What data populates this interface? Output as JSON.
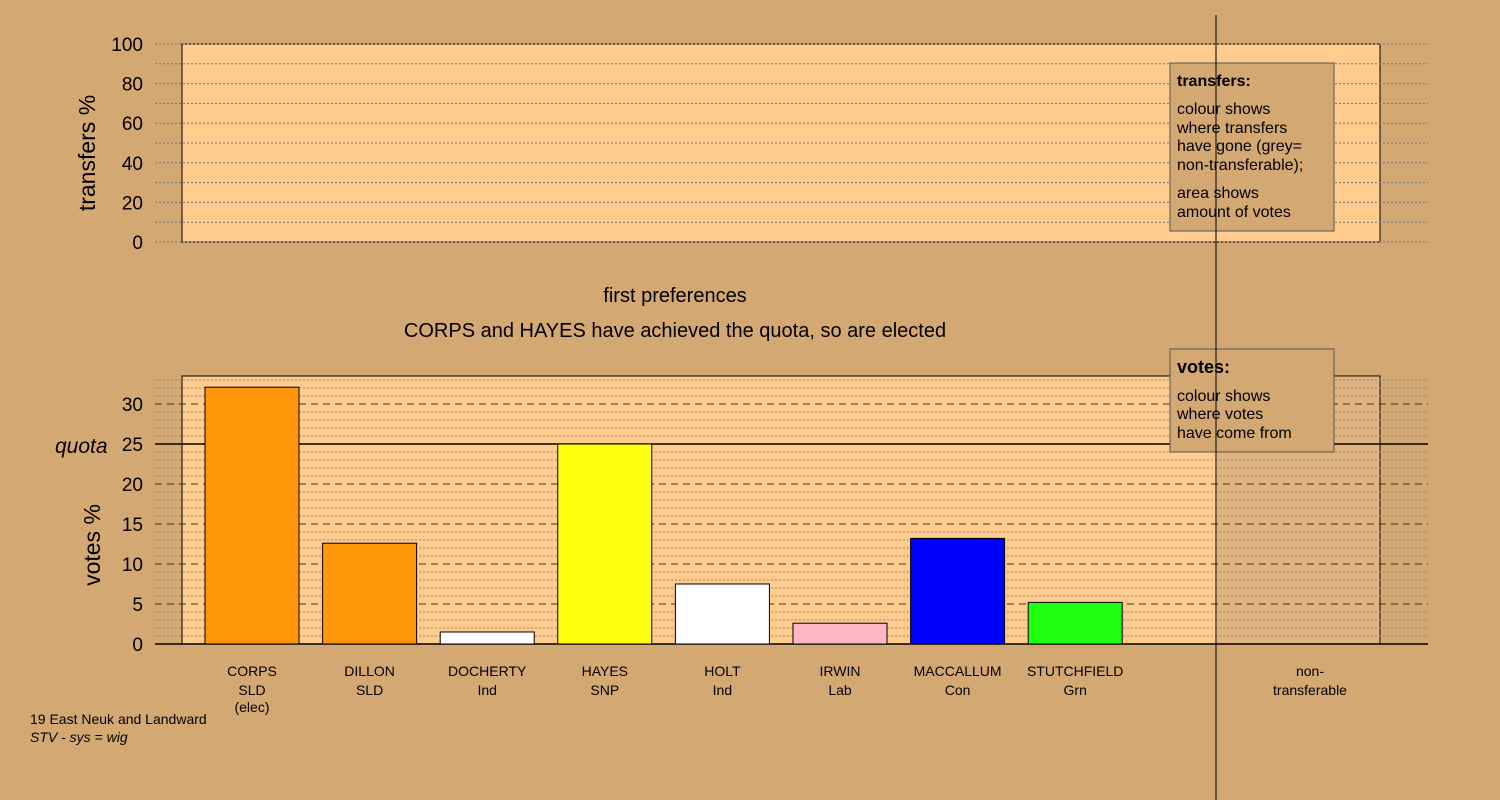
{
  "colors": {
    "background": "#d4a873",
    "panel": "#ffcc8e",
    "nt_panel": "#c8a072",
    "legend_box": "#d4a873"
  },
  "top_panel": {
    "ylabel": "transfers %",
    "ylim": [
      0,
      100
    ],
    "ticks": [
      0,
      20,
      40,
      60,
      80,
      100
    ]
  },
  "stage": {
    "title": "first preferences",
    "message": "CORPS and HAYES have achieved the quota, so are elected"
  },
  "legends": {
    "transfers": {
      "title": "transfers:",
      "lines": [
        "colour shows",
        "where transfers",
        "have gone (grey=",
        "non-transferable);"
      ],
      "lines2": [
        "area shows",
        "amount of votes"
      ]
    },
    "votes": {
      "title": "votes:",
      "lines": [
        "colour shows",
        "where votes",
        "have come from"
      ]
    }
  },
  "footer": {
    "line1": "19 East Neuk and Landward",
    "line2": "STV - sys = wig"
  },
  "chart_data": {
    "type": "bar",
    "ylabel": "votes %",
    "ylim": [
      0,
      33.5
    ],
    "yticks": [
      0,
      5,
      10,
      15,
      20,
      25,
      30
    ],
    "quota": 25,
    "quota_label": "quota",
    "candidates": [
      {
        "name": "CORPS",
        "party": "SLD",
        "note": "(elec)",
        "value": 32.1,
        "color": "#ff9508"
      },
      {
        "name": "DILLON",
        "party": "SLD",
        "note": "",
        "value": 12.6,
        "color": "#ff9508"
      },
      {
        "name": "DOCHERTY",
        "party": "Ind",
        "note": "",
        "value": 1.5,
        "color": "#ffffff"
      },
      {
        "name": "HAYES",
        "party": "SNP",
        "note": "",
        "value": 25.0,
        "color": "#ffff10"
      },
      {
        "name": "HOLT",
        "party": "Ind",
        "note": "",
        "value": 7.5,
        "color": "#ffffff"
      },
      {
        "name": "IRWIN",
        "party": "Lab",
        "note": "",
        "value": 2.6,
        "color": "#ffb6c6"
      },
      {
        "name": "MACCALLUM",
        "party": "Con",
        "note": "",
        "value": 13.2,
        "color": "#0000ff"
      },
      {
        "name": "STUTCHFIELD",
        "party": "Grn",
        "note": "",
        "value": 5.2,
        "color": "#20ff10"
      }
    ],
    "nontransferable": {
      "label1": "non-",
      "label2": "transferable",
      "value": 0
    }
  }
}
